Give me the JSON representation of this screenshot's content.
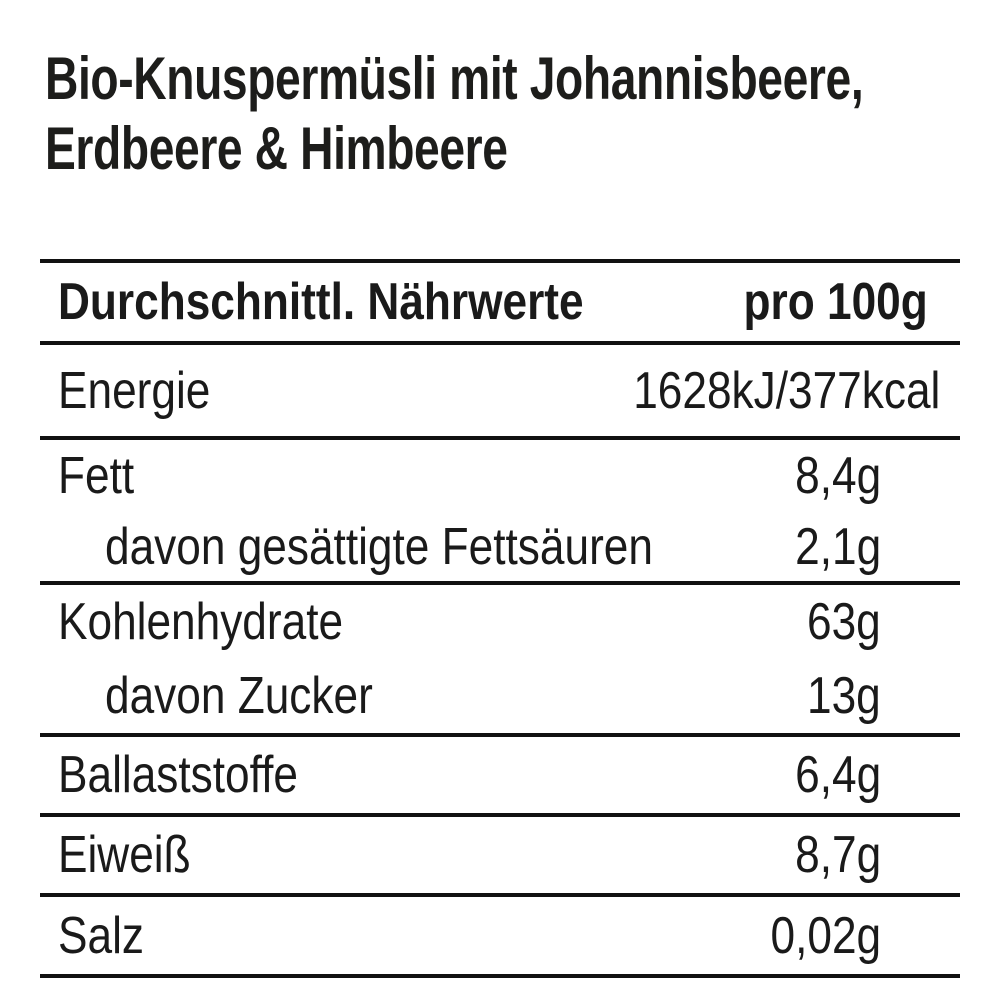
{
  "title": {
    "line1": "Bio-Knuspermüsli mit Johannisbeere,",
    "line2": "Erdbeere & Himbeere"
  },
  "table": {
    "header": {
      "label": "Durchschnittl. Nährwerte",
      "value": "pro 100g"
    },
    "rows": [
      {
        "id": "energie",
        "label": "Energie",
        "value": "1628kJ/377kcal",
        "indent": false
      },
      {
        "id": "fett",
        "label": "Fett",
        "value": "8,4g",
        "indent": false
      },
      {
        "id": "fett_sat",
        "label": "davon gesättigte Fettsäuren",
        "value": "2,1g",
        "indent": true
      },
      {
        "id": "kohlenhydrate",
        "label": "Kohlenhydrate",
        "value": "63g",
        "indent": false
      },
      {
        "id": "zucker",
        "label": "davon Zucker",
        "value": "13g",
        "indent": true
      },
      {
        "id": "ballaststoffe",
        "label": "Ballaststoffe",
        "value": "6,4g",
        "indent": false
      },
      {
        "id": "eiweiss",
        "label": "Eiweiß",
        "value": "8,7g",
        "indent": false
      },
      {
        "id": "salz",
        "label": "Salz",
        "value": "0,02g",
        "indent": false
      }
    ]
  },
  "colors": {
    "text": "#1a1a1a",
    "rule": "#111111",
    "background": "#ffffff"
  }
}
